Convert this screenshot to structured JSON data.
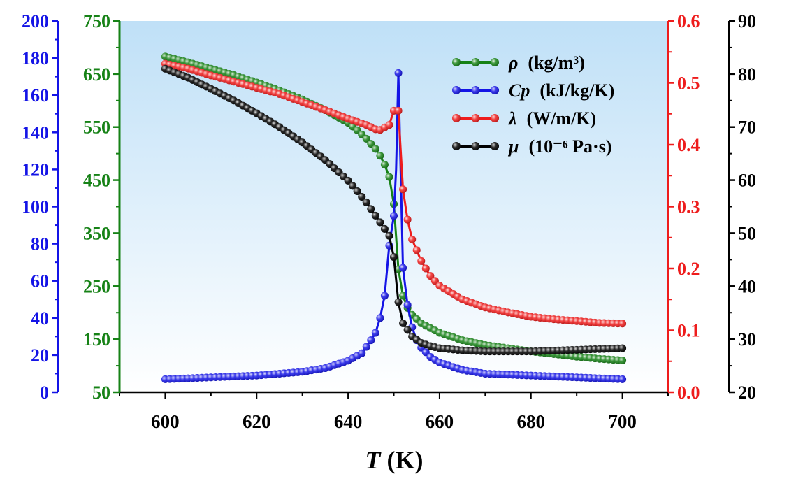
{
  "chart_data": {
    "type": "line",
    "xlabel": {
      "italic": "T",
      "rest": " (K)"
    },
    "xlim": [
      590,
      710
    ],
    "x_ticks": [
      600,
      620,
      640,
      660,
      680,
      700
    ],
    "background_gradient": [
      "#bfe0f7",
      "#ffffff"
    ],
    "axes": [
      {
        "id": "cp",
        "color": "#1414e6",
        "lim": [
          0,
          200
        ],
        "ticks": [
          0,
          20,
          40,
          60,
          80,
          100,
          120,
          140,
          160,
          180,
          200
        ]
      },
      {
        "id": "rho",
        "color": "#168216",
        "lim": [
          50,
          750
        ],
        "ticks": [
          50,
          150,
          250,
          350,
          450,
          550,
          650,
          750
        ]
      },
      {
        "id": "lambda",
        "color": "#ee1c1c",
        "lim": [
          0,
          0.6
        ],
        "ticks": [
          "0.0",
          "0.1",
          "0.2",
          "0.3",
          "0.4",
          "0.5",
          "0.6"
        ]
      },
      {
        "id": "mu",
        "color": "#000000",
        "lim": [
          20,
          90
        ],
        "ticks": [
          20,
          30,
          40,
          50,
          60,
          70,
          80,
          90
        ]
      }
    ],
    "series": [
      {
        "id": "rho",
        "axis": "rho",
        "symbol": "ρ",
        "name": "(kg/m³)",
        "color": "#168216",
        "points": [
          [
            600,
            683
          ],
          [
            605,
            672
          ],
          [
            610,
            660
          ],
          [
            615,
            648
          ],
          [
            620,
            634
          ],
          [
            625,
            619
          ],
          [
            630,
            602
          ],
          [
            635,
            582
          ],
          [
            640,
            558
          ],
          [
            642,
            544
          ],
          [
            644,
            528
          ],
          [
            646,
            509
          ],
          [
            647,
            496
          ],
          [
            648,
            479
          ],
          [
            649,
            456
          ],
          [
            650,
            405
          ],
          [
            651,
            282
          ],
          [
            652,
            232
          ],
          [
            653,
            209
          ],
          [
            654,
            196
          ],
          [
            656,
            180
          ],
          [
            660,
            162
          ],
          [
            665,
            148
          ],
          [
            670,
            139
          ],
          [
            675,
            133
          ],
          [
            680,
            127
          ],
          [
            685,
            122
          ],
          [
            690,
            117
          ],
          [
            695,
            113
          ],
          [
            700,
            110
          ]
        ]
      },
      {
        "id": "cp",
        "axis": "cp",
        "symbol": "Cp",
        "name": "(kJ/kg/K)",
        "color": "#1414e6",
        "points": [
          [
            600,
            7
          ],
          [
            610,
            8
          ],
          [
            620,
            9
          ],
          [
            630,
            11
          ],
          [
            635,
            13
          ],
          [
            640,
            17
          ],
          [
            643,
            21
          ],
          [
            645,
            28
          ],
          [
            646,
            32
          ],
          [
            647,
            40
          ],
          [
            648,
            52
          ],
          [
            649,
            79
          ],
          [
            650,
            95
          ],
          [
            650.5,
            120
          ],
          [
            651,
            172
          ],
          [
            652,
            67
          ],
          [
            653,
            47
          ],
          [
            654,
            35
          ],
          [
            655,
            28
          ],
          [
            656,
            24
          ],
          [
            658,
            19
          ],
          [
            660,
            16
          ],
          [
            665,
            12
          ],
          [
            670,
            10
          ],
          [
            680,
            9
          ],
          [
            690,
            8
          ],
          [
            700,
            7
          ]
        ]
      },
      {
        "id": "lambda",
        "axis": "lambda",
        "symbol": "λ",
        "name": "(W/m/K)",
        "color": "#ee1c1c",
        "points": [
          [
            600,
            0.531
          ],
          [
            605,
            0.523
          ],
          [
            610,
            0.512
          ],
          [
            615,
            0.502
          ],
          [
            620,
            0.492
          ],
          [
            625,
            0.482
          ],
          [
            630,
            0.469
          ],
          [
            635,
            0.456
          ],
          [
            640,
            0.442
          ],
          [
            644,
            0.432
          ],
          [
            646,
            0.425
          ],
          [
            647,
            0.424
          ],
          [
            648,
            0.428
          ],
          [
            649,
            0.432
          ],
          [
            650,
            0.455
          ],
          [
            651,
            0.455
          ],
          [
            652,
            0.328
          ],
          [
            653,
            0.279
          ],
          [
            654,
            0.247
          ],
          [
            656,
            0.212
          ],
          [
            658,
            0.188
          ],
          [
            660,
            0.172
          ],
          [
            665,
            0.15
          ],
          [
            670,
            0.137
          ],
          [
            675,
            0.129
          ],
          [
            680,
            0.122
          ],
          [
            685,
            0.118
          ],
          [
            690,
            0.115
          ],
          [
            695,
            0.112
          ],
          [
            700,
            0.111
          ]
        ]
      },
      {
        "id": "mu",
        "axis": "mu",
        "symbol": "μ",
        "name": "(10⁻⁶ Pa·s)",
        "color": "#000000",
        "points": [
          [
            600,
            81.0
          ],
          [
            605,
            79.3
          ],
          [
            610,
            77.2
          ],
          [
            615,
            75.0
          ],
          [
            620,
            72.6
          ],
          [
            625,
            70.0
          ],
          [
            630,
            67.1
          ],
          [
            635,
            63.8
          ],
          [
            640,
            59.9
          ],
          [
            642,
            57.9
          ],
          [
            644,
            55.8
          ],
          [
            646,
            53.3
          ],
          [
            648,
            50.8
          ],
          [
            649,
            49.5
          ],
          [
            650,
            45.5
          ],
          [
            651,
            37.0
          ],
          [
            652,
            33.0
          ],
          [
            654,
            30.5
          ],
          [
            656,
            29.3
          ],
          [
            658,
            28.7
          ],
          [
            660,
            28.3
          ],
          [
            665,
            27.9
          ],
          [
            670,
            27.7
          ],
          [
            680,
            27.7
          ],
          [
            690,
            28.0
          ],
          [
            700,
            28.3
          ]
        ]
      }
    ]
  }
}
